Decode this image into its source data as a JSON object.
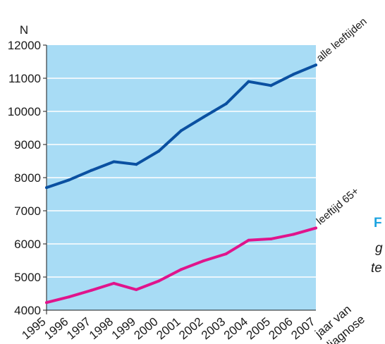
{
  "chart_data": {
    "type": "line",
    "ylabel": "N",
    "xlabel_lines": [
      "jaar van",
      "diagnose"
    ],
    "ylim": [
      4000,
      12000
    ],
    "yticks": [
      4000,
      5000,
      6000,
      7000,
      8000,
      9000,
      10000,
      11000,
      12000
    ],
    "categories": [
      "1995",
      "1996",
      "1997",
      "1998",
      "1999",
      "2000",
      "2001",
      "2002",
      "2003",
      "2004",
      "2005",
      "2006",
      "2007"
    ],
    "grid": true,
    "series": [
      {
        "name": "alle leeftijden",
        "color": "#0a50a1",
        "values": [
          7700,
          7930,
          8220,
          8480,
          8400,
          8800,
          9420,
          9830,
          10230,
          10900,
          10780,
          11120,
          11400
        ]
      },
      {
        "name": "leeftijd 65+",
        "color": "#e0148c",
        "values": [
          4230,
          4400,
          4600,
          4810,
          4620,
          4880,
          5230,
          5490,
          5700,
          6110,
          6150,
          6290,
          6480
        ]
      }
    ],
    "colors": {
      "plot_background": "#a8dcf5",
      "grid": "#ffffff"
    }
  },
  "side_text": {
    "line1": "F",
    "line2": "g",
    "line3": "te",
    "line1_color": "#1aa3e0"
  }
}
